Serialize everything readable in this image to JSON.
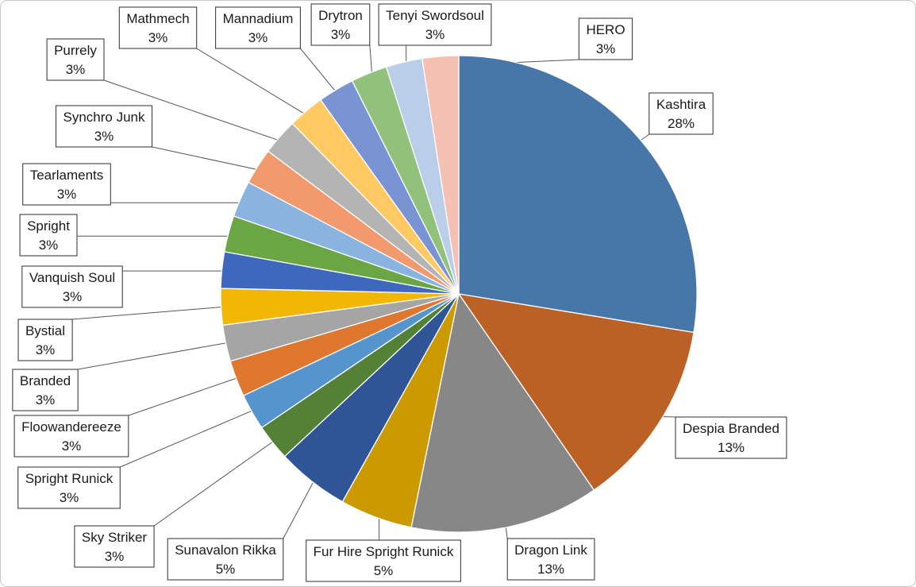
{
  "chart_data": {
    "type": "pie",
    "title": "",
    "slices": [
      {
        "label": "Kashtira",
        "value": 28,
        "pct_label": "28%",
        "color": "#4677A8"
      },
      {
        "label": "Despia Branded",
        "value": 13,
        "pct_label": "13%",
        "color": "#BC6126"
      },
      {
        "label": "Dragon Link",
        "value": 13,
        "pct_label": "13%",
        "color": "#878787"
      },
      {
        "label": "Fur Hire Spright Runick",
        "value": 5,
        "pct_label": "5%",
        "color": "#CB9A00"
      },
      {
        "label": "Sunavalon Rikka",
        "value": 5,
        "pct_label": "5%",
        "color": "#2F5597"
      },
      {
        "label": "Sky Striker",
        "value": 2.5,
        "pct_label": "3%",
        "color": "#538135"
      },
      {
        "label": "Spright Runick",
        "value": 2.5,
        "pct_label": "3%",
        "color": "#5594CC"
      },
      {
        "label": "Floowandereeze",
        "value": 2.5,
        "pct_label": "3%",
        "color": "#E0772F"
      },
      {
        "label": "Branded",
        "value": 2.5,
        "pct_label": "3%",
        "color": "#A5A5A5"
      },
      {
        "label": "Bystial",
        "value": 2.5,
        "pct_label": "3%",
        "color": "#F2B705"
      },
      {
        "label": "Vanquish Soul",
        "value": 2.5,
        "pct_label": "3%",
        "color": "#3E68BE"
      },
      {
        "label": "Spright",
        "value": 2.5,
        "pct_label": "3%",
        "color": "#6BA644"
      },
      {
        "label": "Tearlaments",
        "value": 2.5,
        "pct_label": "3%",
        "color": "#8AB3E0"
      },
      {
        "label": "Synchro Junk",
        "value": 2.5,
        "pct_label": "3%",
        "color": "#F2996E"
      },
      {
        "label": "Purrely",
        "value": 2.5,
        "pct_label": "3%",
        "color": "#B4B4B4"
      },
      {
        "label": "Mathmech",
        "value": 2.5,
        "pct_label": "3%",
        "color": "#FFCA63"
      },
      {
        "label": "Mannadium",
        "value": 2.5,
        "pct_label": "3%",
        "color": "#7A93D3"
      },
      {
        "label": "Drytron",
        "value": 2.5,
        "pct_label": "3%",
        "color": "#92C17B"
      },
      {
        "label": "Tenyi Swordsoul",
        "value": 2.5,
        "pct_label": "3%",
        "color": "#BACDE9"
      },
      {
        "label": "HERO",
        "value": 2.5,
        "pct_label": "3%",
        "color": "#F4C1B3"
      }
    ],
    "start_angle": "12 o'clock",
    "direction": "clockwise",
    "legend": "none",
    "data_labels": "callouts with name and percent"
  }
}
